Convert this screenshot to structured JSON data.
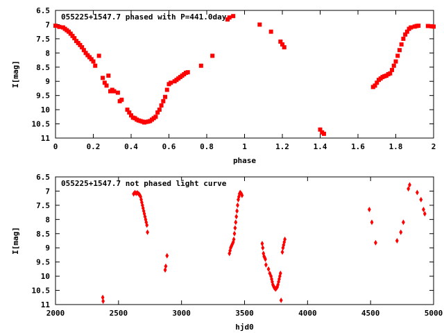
{
  "chart_data": [
    {
      "type": "scatter",
      "title": "055225+1547.7 phased with P=441.0day",
      "xlabel": "phase",
      "ylabel": "I[mag]",
      "xlim": [
        0,
        2
      ],
      "ylim": [
        6.5,
        11
      ],
      "y_inverted": true,
      "xticks": [
        "0",
        "0.2",
        "0.4",
        "0.6",
        "0.8",
        "1",
        "1.2",
        "1.4",
        "1.6",
        "1.8",
        "2"
      ],
      "yticks": [
        "6.5",
        "7",
        "7.5",
        "8",
        "8.5",
        "9",
        "9.5",
        "10",
        "10.5",
        "11"
      ],
      "color": "#ff0000",
      "series": [
        {
          "x": [
            0.0,
            0.02,
            0.04,
            0.05,
            0.06,
            0.07,
            0.08,
            0.09,
            0.1,
            0.11,
            0.12,
            0.13,
            0.14,
            0.15,
            0.16,
            0.17,
            0.18,
            0.19,
            0.2,
            0.21,
            0.23,
            0.25,
            0.26,
            0.27,
            0.28,
            0.29,
            0.3,
            0.31,
            0.33,
            0.34,
            0.35,
            0.38,
            0.39,
            0.4,
            0.41,
            0.42,
            0.43,
            0.44,
            0.45,
            0.46,
            0.47,
            0.48,
            0.49,
            0.5,
            0.51,
            0.52,
            0.53,
            0.54,
            0.55,
            0.56,
            0.57,
            0.58,
            0.59,
            0.6,
            0.61,
            0.63,
            0.64,
            0.65,
            0.66,
            0.67,
            0.68,
            0.69,
            0.7,
            0.77,
            0.83,
            0.91,
            0.92,
            0.94,
            1.08,
            1.14,
            1.19,
            1.2,
            1.21,
            1.4,
            1.41,
            1.42,
            1.68,
            1.69,
            1.7,
            1.71,
            1.72,
            1.73,
            1.74,
            1.75,
            1.76,
            1.77,
            1.78,
            1.79,
            1.8,
            1.81,
            1.82,
            1.83,
            1.84,
            1.85,
            1.86,
            1.87,
            1.88,
            1.9,
            1.91,
            1.92,
            1.97,
            1.99,
            2.0
          ],
          "y": [
            7.04,
            7.08,
            7.1,
            7.15,
            7.2,
            7.25,
            7.32,
            7.4,
            7.48,
            7.58,
            7.65,
            7.72,
            7.8,
            7.9,
            8.0,
            8.08,
            8.15,
            8.22,
            8.3,
            8.45,
            8.1,
            8.88,
            9.05,
            9.15,
            8.8,
            9.35,
            9.3,
            9.35,
            9.4,
            9.7,
            9.65,
            10.0,
            10.1,
            10.2,
            10.28,
            10.3,
            10.35,
            10.38,
            10.4,
            10.42,
            10.45,
            10.43,
            10.42,
            10.4,
            10.35,
            10.3,
            10.25,
            10.1,
            10.0,
            9.85,
            9.7,
            9.55,
            9.3,
            9.1,
            9.05,
            9.0,
            8.95,
            8.9,
            8.85,
            8.8,
            8.75,
            8.7,
            8.68,
            8.45,
            8.1,
            6.82,
            6.75,
            6.7,
            7.0,
            7.25,
            7.6,
            7.7,
            7.8,
            10.7,
            10.8,
            10.85,
            9.2,
            9.15,
            9.05,
            8.95,
            8.9,
            8.85,
            8.82,
            8.8,
            8.75,
            8.72,
            8.6,
            8.45,
            8.3,
            8.1,
            7.9,
            7.7,
            7.5,
            7.35,
            7.25,
            7.15,
            7.1,
            7.07,
            7.05,
            7.04,
            7.05,
            7.06,
            7.07
          ]
        }
      ]
    },
    {
      "type": "scatter",
      "title": "055225+1547.7 not phased light curve",
      "xlabel": "hjd0",
      "ylabel": "I[mag]",
      "xlim": [
        2000,
        5000
      ],
      "ylim": [
        6.5,
        11
      ],
      "y_inverted": true,
      "xticks": [
        "2000",
        "2500",
        "3000",
        "3500",
        "4000",
        "4500",
        "5000"
      ],
      "yticks": [
        "6.5",
        "7",
        "7.5",
        "8",
        "8.5",
        "9",
        "9.5",
        "10",
        "10.5",
        "11"
      ],
      "color": "#ff0000",
      "series": [
        {
          "x": [
            2375,
            2378,
            2620,
            2630,
            2640,
            2650,
            2660,
            2665,
            2670,
            2675,
            2680,
            2685,
            2690,
            2695,
            2700,
            2705,
            2710,
            2715,
            2720,
            2725,
            2730,
            2870,
            2875,
            2885,
            3380,
            3385,
            3390,
            3395,
            3400,
            3405,
            3410,
            3415,
            3420,
            3425,
            3430,
            3435,
            3440,
            3445,
            3450,
            3455,
            3460,
            3465,
            3470,
            3475,
            3480,
            3640,
            3645,
            3650,
            3655,
            3660,
            3665,
            3670,
            3690,
            3700,
            3710,
            3715,
            3720,
            3725,
            3730,
            3735,
            3740,
            3745,
            3750,
            3755,
            3760,
            3765,
            3770,
            3775,
            3780,
            3785,
            3790,
            3800,
            3805,
            3810,
            3815,
            3820,
            4490,
            4510,
            4540,
            4710,
            4740,
            4760,
            4800,
            4810,
            4870,
            4900,
            4920,
            4930
          ],
          "y": [
            10.75,
            10.88,
            7.1,
            7.05,
            7.08,
            7.06,
            7.1,
            7.12,
            7.15,
            7.2,
            7.3,
            7.4,
            7.5,
            7.6,
            7.7,
            7.8,
            7.9,
            8.0,
            8.1,
            8.2,
            8.45,
            9.78,
            9.65,
            9.28,
            9.2,
            9.1,
            9.0,
            8.95,
            8.9,
            8.85,
            8.8,
            8.7,
            8.5,
            8.3,
            8.1,
            7.9,
            7.7,
            7.5,
            7.3,
            7.2,
            7.1,
            7.05,
            7.08,
            7.1,
            7.15,
            8.85,
            9.0,
            9.2,
            9.3,
            9.35,
            9.4,
            9.6,
            9.75,
            9.9,
            10.0,
            10.1,
            10.2,
            10.3,
            10.35,
            10.4,
            10.42,
            10.45,
            10.44,
            10.4,
            10.38,
            10.3,
            10.2,
            10.1,
            10.0,
            9.9,
            10.85,
            9.15,
            9.0,
            8.9,
            8.8,
            8.7,
            7.65,
            8.1,
            8.82,
            8.75,
            8.45,
            8.1,
            6.92,
            6.78,
            7.05,
            7.3,
            7.65,
            7.8
          ]
        }
      ]
    }
  ]
}
